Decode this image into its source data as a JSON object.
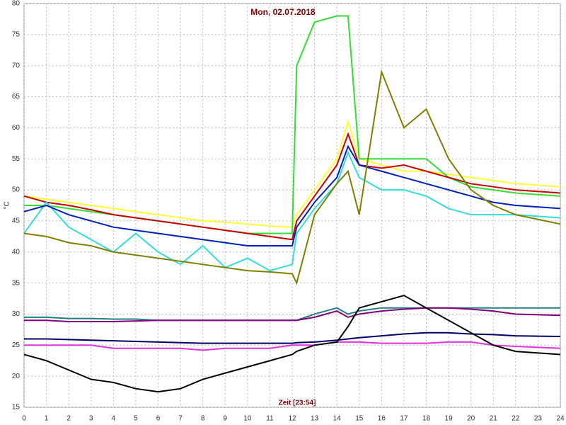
{
  "chart_data": {
    "type": "line",
    "title": "Mon, 02.07.2018",
    "xlabel": "Zeit [23:54]",
    "ylabel": "°C",
    "x": [
      0,
      1,
      2,
      3,
      4,
      5,
      6,
      7,
      8,
      9,
      10,
      11,
      12,
      12.2,
      13,
      14,
      14.5,
      15,
      16,
      17,
      18,
      19,
      20,
      21,
      22,
      24
    ],
    "xlim": [
      0,
      24
    ],
    "xticks": [
      0,
      1,
      2,
      3,
      4,
      5,
      6,
      7,
      8,
      9,
      10,
      11,
      12,
      13,
      14,
      15,
      16,
      17,
      18,
      19,
      20,
      21,
      22,
      23,
      24
    ],
    "ylim": [
      15,
      80
    ],
    "yticks": [
      15,
      20,
      25,
      30,
      35,
      40,
      45,
      50,
      55,
      60,
      65,
      70,
      75,
      80
    ],
    "grid": true,
    "series": [
      {
        "color": "#ffff33",
        "values": [
          49,
          48.5,
          48,
          47.5,
          47,
          46.5,
          46,
          45.5,
          45,
          44.8,
          44.5,
          44.2,
          44,
          46,
          50,
          55,
          61,
          55,
          54,
          53,
          53,
          52.5,
          52,
          51.5,
          51,
          50.5
        ]
      },
      {
        "color": "#33dd33",
        "values": [
          47.5,
          47.5,
          47,
          46.5,
          46,
          45.5,
          45,
          44.5,
          44,
          43.5,
          43,
          43,
          43,
          70,
          77,
          78,
          78,
          55,
          55,
          55,
          55,
          52,
          50.5,
          50,
          49.5,
          49
        ]
      },
      {
        "color": "#cc0000",
        "values": [
          49,
          48,
          47.5,
          46.8,
          46,
          45.5,
          45,
          44.5,
          44,
          43.5,
          43,
          42.5,
          42,
          45,
          49,
          54,
          59,
          54,
          53.5,
          54,
          53,
          52,
          51,
          50.5,
          50,
          49.5
        ]
      },
      {
        "color": "#33dddd",
        "values": [
          43,
          48,
          44,
          42,
          40,
          43,
          40,
          38,
          41,
          37.5,
          39,
          37,
          38,
          43,
          47,
          51,
          56,
          52,
          50,
          50,
          49,
          47,
          46,
          46,
          46,
          45.5
        ]
      },
      {
        "color": "#0022bb",
        "values": [
          46.5,
          47.5,
          46,
          45,
          44,
          43.5,
          43,
          42.5,
          42,
          41.5,
          41,
          41,
          41,
          44,
          48,
          52,
          57,
          54,
          53,
          52,
          51,
          50,
          49,
          48,
          47.5,
          47
        ]
      },
      {
        "color": "#808000",
        "values": [
          43,
          42.5,
          41.5,
          41,
          40,
          39.5,
          39,
          38.5,
          38,
          37.5,
          37,
          36.8,
          36.5,
          35,
          46,
          51,
          53,
          46,
          69,
          60,
          63,
          55,
          50,
          47.5,
          46,
          44.5
        ]
      },
      {
        "color": "#228080",
        "values": [
          29.5,
          29.5,
          29.3,
          29.3,
          29.2,
          29.2,
          29,
          29,
          29,
          29,
          29,
          29,
          29,
          29,
          30,
          31,
          30,
          30.5,
          31,
          31,
          31,
          31,
          31,
          31,
          31,
          31
        ]
      },
      {
        "color": "#800080",
        "values": [
          29,
          29,
          28.8,
          28.8,
          28.8,
          28.9,
          29,
          29,
          29,
          29,
          29,
          29,
          29,
          29,
          29.5,
          30.5,
          29.5,
          30,
          30.5,
          30.8,
          31,
          31,
          30.8,
          30.5,
          30,
          29.8
        ]
      },
      {
        "color": "#000066",
        "values": [
          26,
          26,
          25.9,
          25.8,
          25.7,
          25.6,
          25.5,
          25.4,
          25.3,
          25.3,
          25.3,
          25.3,
          25.3,
          25.4,
          25.5,
          25.8,
          26,
          26.2,
          26.5,
          26.8,
          27,
          27,
          26.8,
          26.7,
          26.5,
          26.4
        ]
      },
      {
        "color": "#dd33dd",
        "values": [
          25,
          25,
          25,
          25,
          24.5,
          24.5,
          24.5,
          24.5,
          24.2,
          24.5,
          24.5,
          24.5,
          25,
          25,
          25,
          25.5,
          25.5,
          25.5,
          25.3,
          25.3,
          25.3,
          25.5,
          25.5,
          25,
          24.8,
          24.5
        ]
      },
      {
        "color": "#000000",
        "values": [
          23.5,
          22.5,
          21,
          19.5,
          19,
          18,
          17.5,
          18,
          19.5,
          20.5,
          21.5,
          22.5,
          23.5,
          24,
          25,
          25.5,
          28,
          31,
          32,
          33,
          31,
          29,
          27,
          25,
          24,
          23.5
        ]
      }
    ]
  }
}
